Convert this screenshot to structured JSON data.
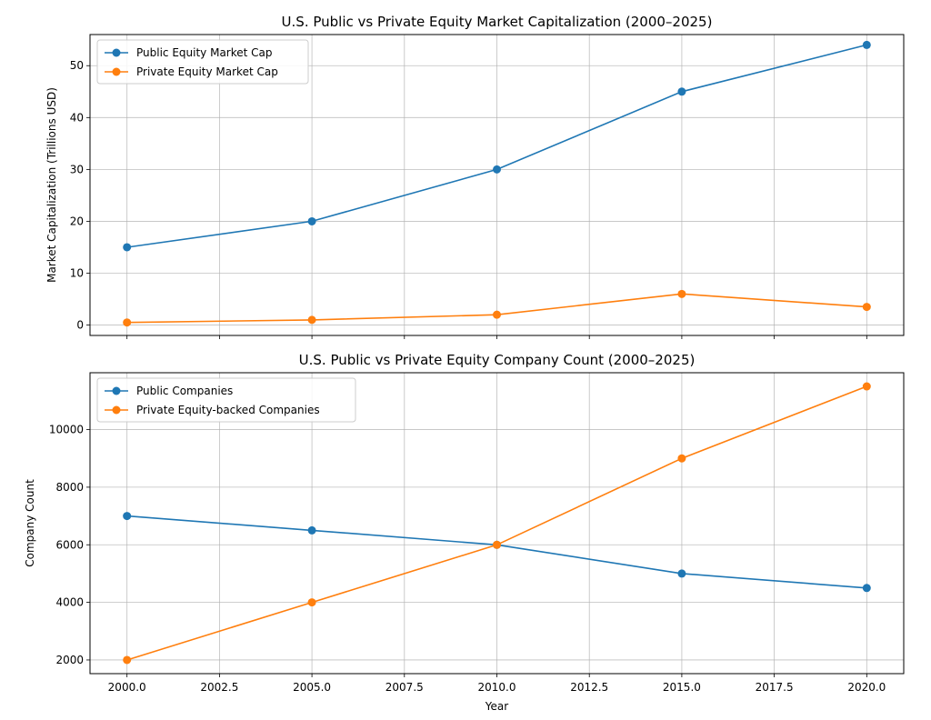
{
  "chart_data": [
    {
      "type": "line",
      "title": "U.S. Public vs Private Equity Market Capitalization (2000–2025)",
      "xlabel": "",
      "ylabel": "Market Capitalization (Trillions USD)",
      "x": [
        2000,
        2005,
        2010,
        2015,
        2020
      ],
      "xlim": [
        1999.0,
        2021.0
      ],
      "ylim": [
        -2,
        56
      ],
      "xticks": [
        2000.0,
        2002.5,
        2005.0,
        2007.5,
        2010.0,
        2012.5,
        2015.0,
        2017.5,
        2020.0
      ],
      "yticks": [
        0,
        10,
        20,
        30,
        40,
        50
      ],
      "grid": true,
      "legend_position": "upper-left",
      "series": [
        {
          "name": "Public Equity Market Cap",
          "values": [
            15,
            20,
            30,
            45,
            54
          ],
          "color": "#1f77b4"
        },
        {
          "name": "Private Equity Market Cap",
          "values": [
            0.5,
            1,
            2,
            6,
            3.5
          ],
          "color": "#ff7f0e"
        }
      ]
    },
    {
      "type": "line",
      "title": "U.S. Public vs Private Equity Company Count (2000–2025)",
      "xlabel": "Year",
      "ylabel": "Company Count",
      "x": [
        2000,
        2005,
        2010,
        2015,
        2020
      ],
      "xlim": [
        1999.0,
        2021.0
      ],
      "ylim": [
        1525,
        11975
      ],
      "xticks": [
        2000.0,
        2002.5,
        2005.0,
        2007.5,
        2010.0,
        2012.5,
        2015.0,
        2017.5,
        2020.0
      ],
      "yticks": [
        2000,
        4000,
        6000,
        8000,
        10000
      ],
      "grid": true,
      "legend_position": "upper-left",
      "series": [
        {
          "name": "Public Companies",
          "values": [
            7000,
            6500,
            6000,
            5000,
            4500
          ],
          "color": "#1f77b4"
        },
        {
          "name": "Private Equity-backed Companies",
          "values": [
            2000,
            4000,
            6000,
            9000,
            11500
          ],
          "color": "#ff7f0e"
        }
      ]
    }
  ]
}
